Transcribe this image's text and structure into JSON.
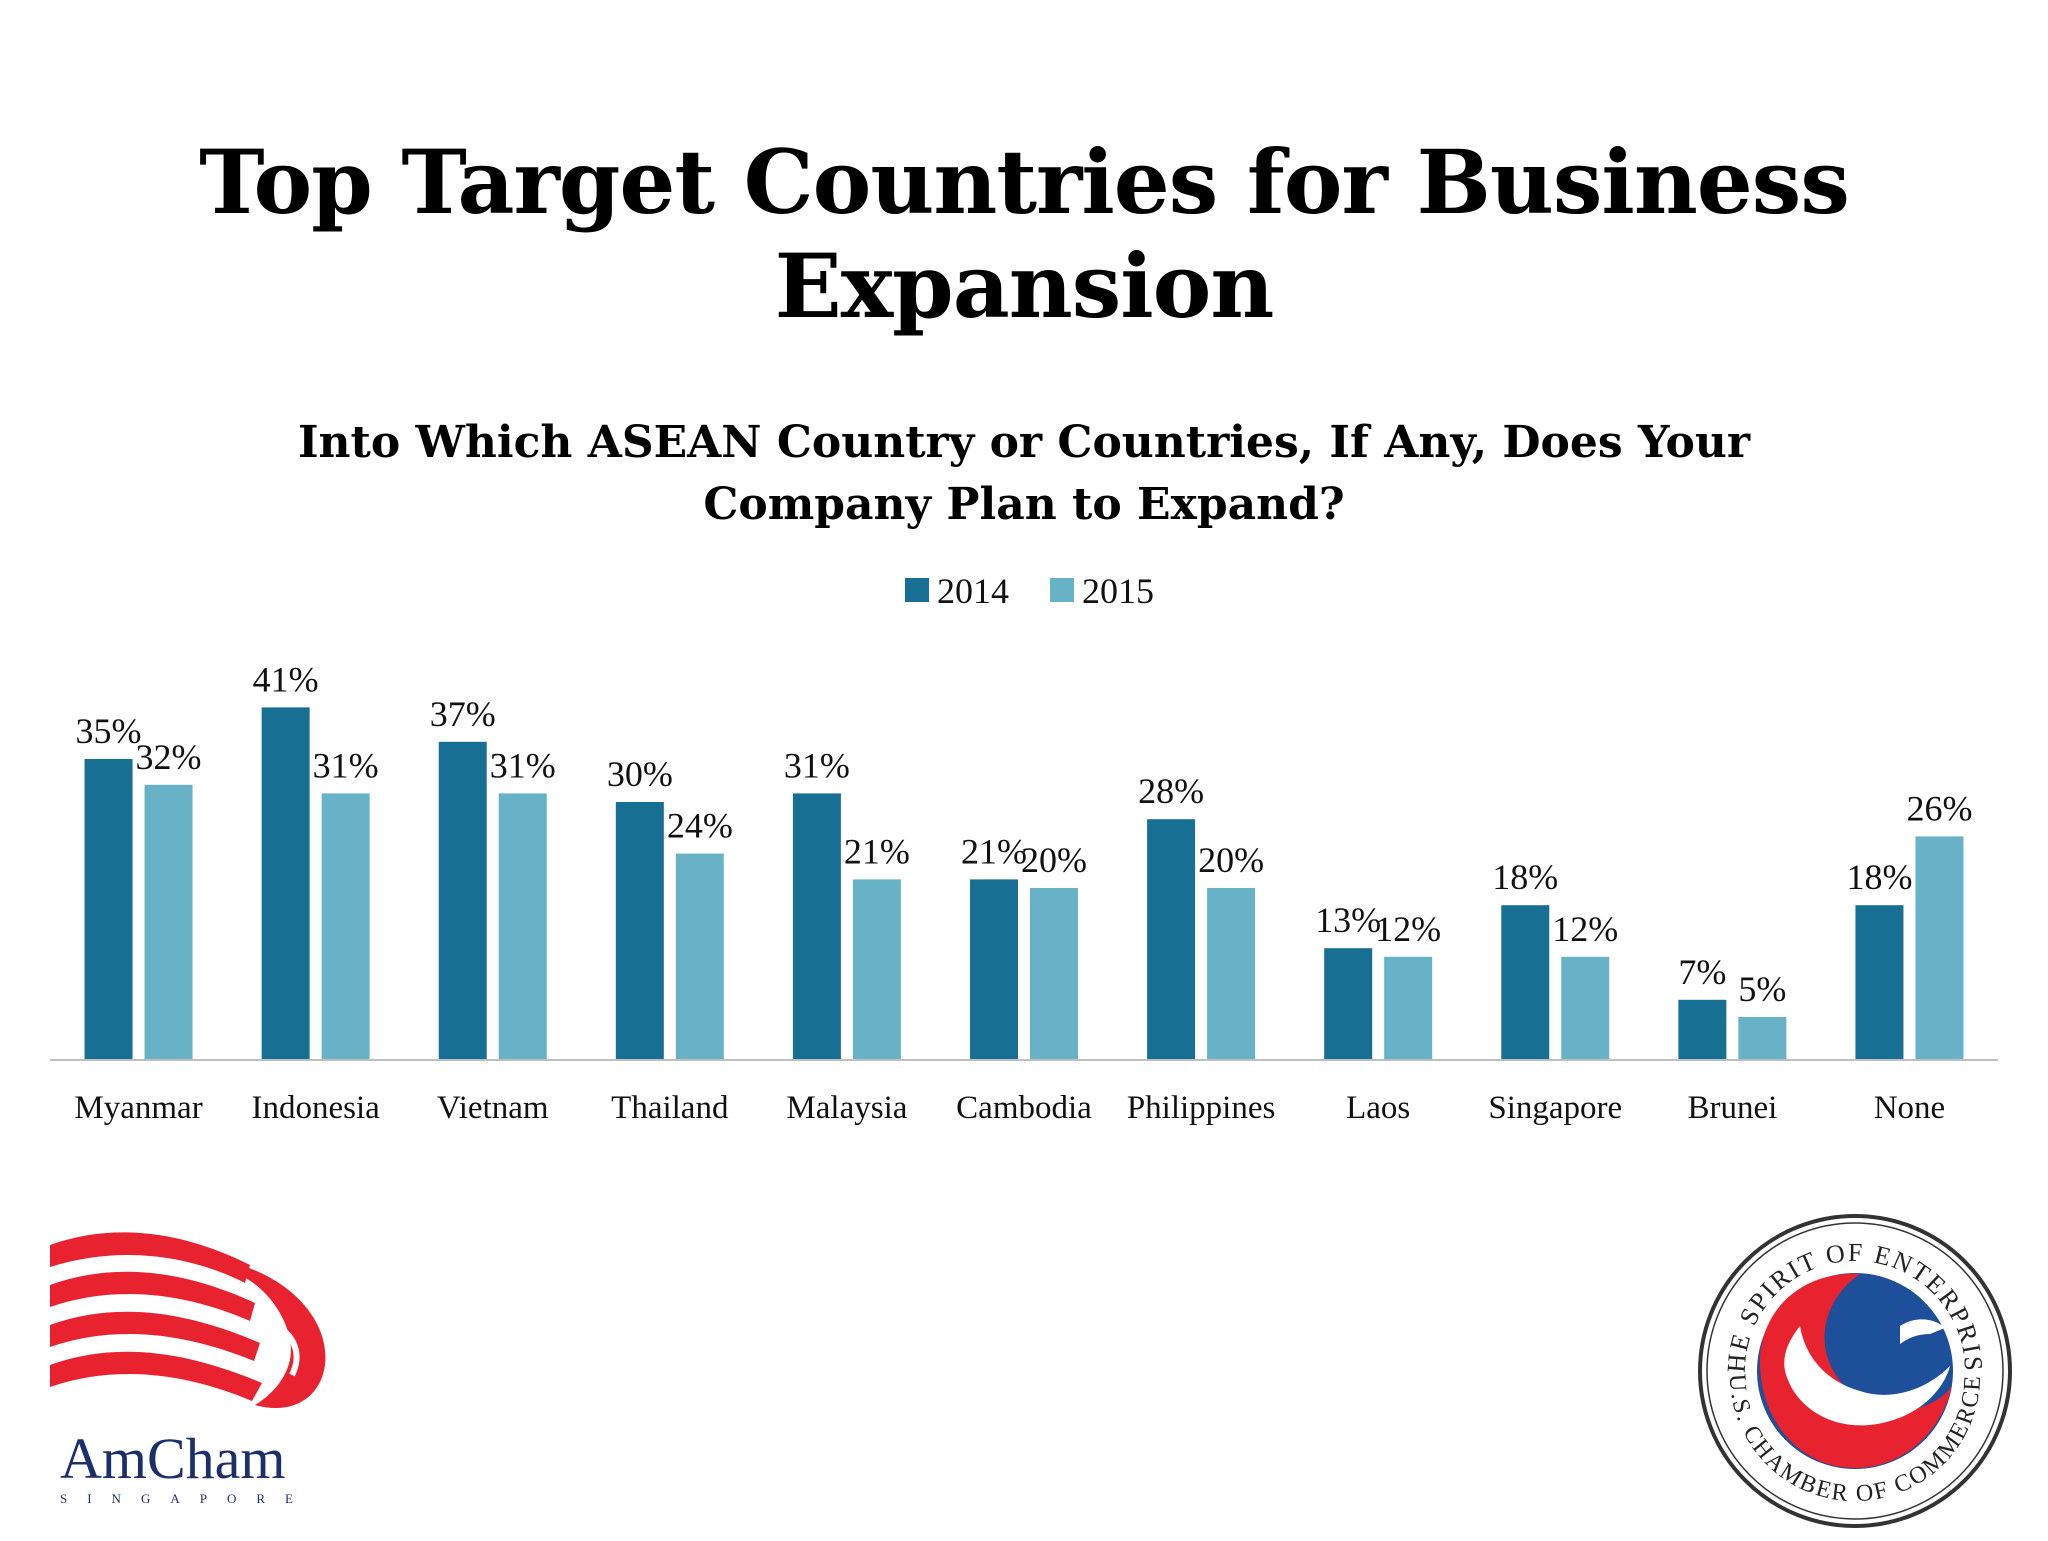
{
  "title": "Top Target Countries for Business Expansion",
  "chart_data": {
    "type": "bar",
    "title": "Into Which ASEAN Country or Countries, If Any, Does Your Company Plan to Expand?",
    "xlabel": "",
    "ylabel": "",
    "ylim": [
      0,
      45
    ],
    "grid": false,
    "legend_position": "top-center",
    "categories": [
      "Myanmar",
      "Indonesia",
      "Vietnam",
      "Thailand",
      "Malaysia",
      "Cambodia",
      "Philippines",
      "Laos",
      "Singapore",
      "Brunei",
      "None"
    ],
    "series": [
      {
        "name": "2014",
        "color": "#176f93",
        "values": [
          35,
          41,
          37,
          30,
          31,
          21,
          28,
          13,
          18,
          7,
          18
        ],
        "labels": [
          "35%",
          "41%",
          "37%",
          "30%",
          "31%",
          "21%",
          "28%",
          "13%",
          "18%",
          "7%",
          "18%"
        ]
      },
      {
        "name": "2015",
        "color": "#67b2c6",
        "values": [
          32,
          31,
          31,
          24,
          21,
          20,
          20,
          12,
          12,
          5,
          26
        ],
        "labels": [
          "32%",
          "31%",
          "31%",
          "24%",
          "21%",
          "20%",
          "20%",
          "12%",
          "12%",
          "5%",
          "26%"
        ]
      }
    ]
  },
  "logos": {
    "amcham": {
      "icon": "amcham-lion-flag-logo",
      "text": "AmCham",
      "subtext": "SINGAPORE"
    },
    "chamber": {
      "icon": "us-chamber-of-commerce-seal",
      "text_top": "THE SPIRIT OF ENTERPRISE",
      "text_bottom": "U.S. CHAMBER OF COMMERCE"
    }
  }
}
